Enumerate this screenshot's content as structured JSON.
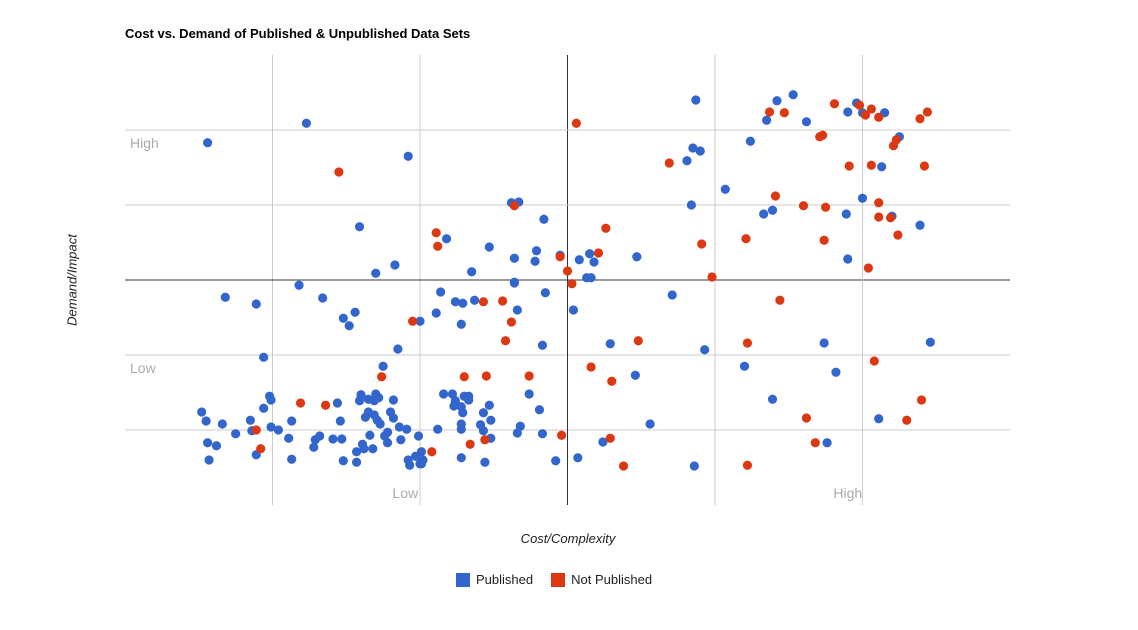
{
  "chart_data": {
    "type": "scatter",
    "title": "Cost vs. Demand of Published & Unpublished Data Sets",
    "xlabel": "Cost/Complexity",
    "ylabel": "Demand/Impact",
    "xlim": [
      0,
      6
    ],
    "ylim": [
      0,
      6
    ],
    "grid": true,
    "x_midline": 3,
    "y_midline": 3,
    "x_annotations": [
      {
        "label": "Low",
        "x": 1.9
      },
      {
        "label": "High",
        "x": 4.9
      }
    ],
    "y_annotations": [
      {
        "label": "High",
        "y": 4.83
      },
      {
        "label": "Low",
        "y": 1.83
      }
    ],
    "legend_position": "bottom",
    "series": [
      {
        "name": "Published",
        "color": "#3366cc",
        "points": [
          [
            0.56,
            4.83
          ],
          [
            1.23,
            5.09
          ],
          [
            1.92,
            4.65
          ],
          [
            2.62,
            4.03
          ],
          [
            2.67,
            4.04
          ],
          [
            2.84,
            3.81
          ],
          [
            1.59,
            3.71
          ],
          [
            2.18,
            3.55
          ],
          [
            2.47,
            3.44
          ],
          [
            2.79,
            3.39
          ],
          [
            2.95,
            3.33
          ],
          [
            2.64,
            3.29
          ],
          [
            2.78,
            3.25
          ],
          [
            1.83,
            3.2
          ],
          [
            1.7,
            3.09
          ],
          [
            2.35,
            3.11
          ],
          [
            1.18,
            2.93
          ],
          [
            2.64,
            2.97
          ],
          [
            3.87,
            5.4
          ],
          [
            4.42,
            5.39
          ],
          [
            4.53,
            5.47
          ],
          [
            4.35,
            5.13
          ],
          [
            4.62,
            5.11
          ],
          [
            4.96,
            5.36
          ],
          [
            4.9,
            5.24
          ],
          [
            5.0,
            5.23
          ],
          [
            5.15,
            5.23
          ],
          [
            5.25,
            4.91
          ],
          [
            5.13,
            4.51
          ],
          [
            4.24,
            4.85
          ],
          [
            3.85,
            4.76
          ],
          [
            3.9,
            4.72
          ],
          [
            3.81,
            4.59
          ],
          [
            4.07,
            4.21
          ],
          [
            3.84,
            4.0
          ],
          [
            4.33,
            3.88
          ],
          [
            4.39,
            3.93
          ],
          [
            4.89,
            3.88
          ],
          [
            5.0,
            4.09
          ],
          [
            5.2,
            3.85
          ],
          [
            5.39,
            3.73
          ],
          [
            3.15,
            3.35
          ],
          [
            3.18,
            3.24
          ],
          [
            3.08,
            3.27
          ],
          [
            3.47,
            3.31
          ],
          [
            4.9,
            3.28
          ],
          [
            3.13,
            3.03
          ],
          [
            3.16,
            3.03
          ],
          [
            3.04,
            2.6
          ],
          [
            3.71,
            2.8
          ],
          [
            3.29,
            2.15
          ],
          [
            3.93,
            2.07
          ],
          [
            3.46,
            1.73
          ],
          [
            3.56,
            1.08
          ],
          [
            3.24,
            0.84
          ],
          [
            3.07,
            0.63
          ],
          [
            3.86,
            0.52
          ],
          [
            4.74,
            2.16
          ],
          [
            5.46,
            2.17
          ],
          [
            4.2,
            1.85
          ],
          [
            4.82,
            1.77
          ],
          [
            4.39,
            1.41
          ],
          [
            5.11,
            1.15
          ],
          [
            4.76,
            0.83
          ],
          [
            2.14,
            2.84
          ],
          [
            2.24,
            2.71
          ],
          [
            2.29,
            2.69
          ],
          [
            2.37,
            2.73
          ],
          [
            2.64,
            2.96
          ],
          [
            2.85,
            2.83
          ],
          [
            2.11,
            2.56
          ],
          [
            2.66,
            2.6
          ],
          [
            2.28,
            2.41
          ],
          [
            2.83,
            2.13
          ],
          [
            2.16,
            1.48
          ],
          [
            2.22,
            1.48
          ],
          [
            2.3,
            1.45
          ],
          [
            2.33,
            1.45
          ],
          [
            2.33,
            1.4
          ],
          [
            2.24,
            1.39
          ],
          [
            2.23,
            1.32
          ],
          [
            2.28,
            1.31
          ],
          [
            2.29,
            1.23
          ],
          [
            2.47,
            1.33
          ],
          [
            2.43,
            1.23
          ],
          [
            2.48,
            1.13
          ],
          [
            2.74,
            1.48
          ],
          [
            2.81,
            1.27
          ],
          [
            2.28,
            1.08
          ],
          [
            2.28,
            1.01
          ],
          [
            2.41,
            1.07
          ],
          [
            2.43,
            0.99
          ],
          [
            2.12,
            1.01
          ],
          [
            2.68,
            1.05
          ],
          [
            2.66,
            0.96
          ],
          [
            2.83,
            0.95
          ],
          [
            2.48,
            0.89
          ],
          [
            2.01,
            0.71
          ],
          [
            2.02,
            0.6
          ],
          [
            2.01,
            0.55
          ],
          [
            2.28,
            0.63
          ],
          [
            2.44,
            0.57
          ],
          [
            2.92,
            0.59
          ],
          [
            0.68,
            2.77
          ],
          [
            0.89,
            2.68
          ],
          [
            1.34,
            2.76
          ],
          [
            1.56,
            2.57
          ],
          [
            1.48,
            2.49
          ],
          [
            1.52,
            2.39
          ],
          [
            2.0,
            2.45
          ],
          [
            1.85,
            2.08
          ],
          [
            0.94,
            1.97
          ],
          [
            1.75,
            1.85
          ],
          [
            0.98,
            1.45
          ],
          [
            0.99,
            1.4
          ],
          [
            0.94,
            1.29
          ],
          [
            1.44,
            1.36
          ],
          [
            1.6,
            1.47
          ],
          [
            1.59,
            1.39
          ],
          [
            1.65,
            1.41
          ],
          [
            1.7,
            1.48
          ],
          [
            1.72,
            1.43
          ],
          [
            1.69,
            1.39
          ],
          [
            1.82,
            1.4
          ],
          [
            0.52,
            1.24
          ],
          [
            0.55,
            1.12
          ],
          [
            0.66,
            1.08
          ],
          [
            0.85,
            1.13
          ],
          [
            0.86,
            0.99
          ],
          [
            0.99,
            1.04
          ],
          [
            1.04,
            1.0
          ],
          [
            1.13,
            1.12
          ],
          [
            0.75,
            0.95
          ],
          [
            1.63,
            1.17
          ],
          [
            1.65,
            1.24
          ],
          [
            1.69,
            1.2
          ],
          [
            1.71,
            1.13
          ],
          [
            1.73,
            1.08
          ],
          [
            1.8,
            1.24
          ],
          [
            1.82,
            1.16
          ],
          [
            1.46,
            1.12
          ],
          [
            1.86,
            1.04
          ],
          [
            1.91,
            1.01
          ],
          [
            1.99,
            0.92
          ],
          [
            0.56,
            0.83
          ],
          [
            0.62,
            0.79
          ],
          [
            1.11,
            0.89
          ],
          [
            1.32,
            0.92
          ],
          [
            1.29,
            0.87
          ],
          [
            1.28,
            0.77
          ],
          [
            1.41,
            0.88
          ],
          [
            1.47,
            0.88
          ],
          [
            1.66,
            0.93
          ],
          [
            1.78,
            0.97
          ],
          [
            1.76,
            0.92
          ],
          [
            1.78,
            0.83
          ],
          [
            1.87,
            0.87
          ],
          [
            1.61,
            0.81
          ],
          [
            1.62,
            0.75
          ],
          [
            1.57,
            0.71
          ],
          [
            1.68,
            0.75
          ],
          [
            0.89,
            0.67
          ],
          [
            0.57,
            0.6
          ],
          [
            1.13,
            0.61
          ],
          [
            1.48,
            0.59
          ],
          [
            1.57,
            0.57
          ],
          [
            1.92,
            0.6
          ],
          [
            1.93,
            0.53
          ],
          [
            1.97,
            0.65
          ],
          [
            2.0,
            0.55
          ]
        ]
      },
      {
        "name": "Not Published",
        "color": "#dc3912",
        "points": [
          [
            3.06,
            5.09
          ],
          [
            1.45,
            4.44
          ],
          [
            2.64,
            3.99
          ],
          [
            2.11,
            3.63
          ],
          [
            2.12,
            3.45
          ],
          [
            2.95,
            3.31
          ],
          [
            3.0,
            3.12
          ],
          [
            3.03,
            2.95
          ],
          [
            4.37,
            5.24
          ],
          [
            4.47,
            5.23
          ],
          [
            4.81,
            5.35
          ],
          [
            4.98,
            5.33
          ],
          [
            5.02,
            5.2
          ],
          [
            5.06,
            5.28
          ],
          [
            5.11,
            5.17
          ],
          [
            5.39,
            5.15
          ],
          [
            5.44,
            5.24
          ],
          [
            4.71,
            4.91
          ],
          [
            4.73,
            4.93
          ],
          [
            5.23,
            4.87
          ],
          [
            5.21,
            4.79
          ],
          [
            4.91,
            4.52
          ],
          [
            5.06,
            4.53
          ],
          [
            5.42,
            4.52
          ],
          [
            3.69,
            4.56
          ],
          [
            4.41,
            4.12
          ],
          [
            4.6,
            3.99
          ],
          [
            4.75,
            3.97
          ],
          [
            5.11,
            4.03
          ],
          [
            5.11,
            3.84
          ],
          [
            5.19,
            3.83
          ],
          [
            5.24,
            3.6
          ],
          [
            3.26,
            3.69
          ],
          [
            3.21,
            3.36
          ],
          [
            3.91,
            3.48
          ],
          [
            4.21,
            3.55
          ],
          [
            4.74,
            3.53
          ],
          [
            5.04,
            3.16
          ],
          [
            3.98,
            3.04
          ],
          [
            4.44,
            2.73
          ],
          [
            4.22,
            2.16
          ],
          [
            5.08,
            1.92
          ],
          [
            4.62,
            1.16
          ],
          [
            5.4,
            1.4
          ],
          [
            5.3,
            1.13
          ],
          [
            4.68,
            0.83
          ],
          [
            4.22,
            0.53
          ],
          [
            3.48,
            2.19
          ],
          [
            3.16,
            1.84
          ],
          [
            3.3,
            1.65
          ],
          [
            3.29,
            0.89
          ],
          [
            3.38,
            0.52
          ],
          [
            2.43,
            2.71
          ],
          [
            2.56,
            2.72
          ],
          [
            2.62,
            2.44
          ],
          [
            2.58,
            2.19
          ],
          [
            2.3,
            1.71
          ],
          [
            2.45,
            1.72
          ],
          [
            2.74,
            1.72
          ],
          [
            2.96,
            0.93
          ],
          [
            2.44,
            0.87
          ],
          [
            2.34,
            0.81
          ],
          [
            2.08,
            0.71
          ],
          [
            1.95,
            2.45
          ],
          [
            1.74,
            1.71
          ],
          [
            1.19,
            1.36
          ],
          [
            1.36,
            1.33
          ],
          [
            0.89,
            1.0
          ],
          [
            0.92,
            0.75
          ]
        ]
      }
    ]
  }
}
